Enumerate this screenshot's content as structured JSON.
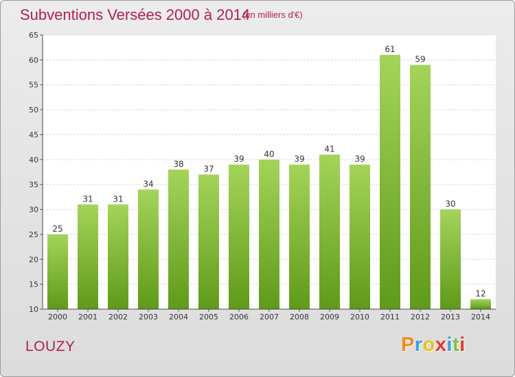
{
  "header": {
    "title": "Subventions Versées 2000 à 2014",
    "unit_note": "(en milliers d'€)"
  },
  "footer": {
    "commune": "LOUZY",
    "logo_text": "Proxiti"
  },
  "colors": {
    "title": "#b0214f",
    "bar_top": "#a4d45a",
    "bar_bottom": "#5f9a1a",
    "logo_letters": [
      "#f08c1e",
      "#3aa0d8",
      "#e8c21a",
      "#e23b2b",
      "#3aa0d8",
      "#7cc242",
      "#e23b2b"
    ]
  },
  "chart_data": {
    "type": "bar",
    "title": "Subventions Versées 2000 à 2014",
    "subtitle": "(en milliers d'€)",
    "xlabel": "",
    "ylabel": "",
    "categories": [
      "2000",
      "2001",
      "2002",
      "2003",
      "2004",
      "2005",
      "2006",
      "2007",
      "2008",
      "2009",
      "2010",
      "2011",
      "2012",
      "2013",
      "2014"
    ],
    "values": [
      25,
      31,
      31,
      34,
      38,
      37,
      39,
      40,
      39,
      41,
      39,
      61,
      59,
      30,
      12
    ],
    "ylim": [
      10,
      65
    ],
    "yticks": [
      10,
      15,
      20,
      25,
      30,
      35,
      40,
      45,
      50,
      55,
      60,
      65
    ],
    "grid": true,
    "data_labels": true,
    "legend": "none"
  }
}
